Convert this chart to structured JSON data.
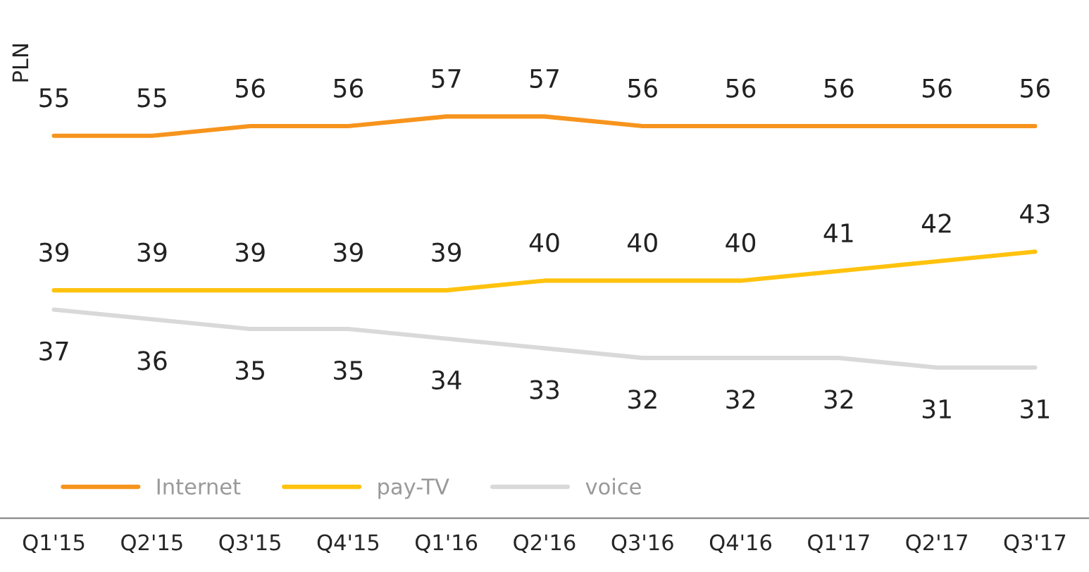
{
  "chart_data": {
    "type": "line",
    "ylabel": "PLN",
    "categories": [
      "Q1'15",
      "Q2'15",
      "Q3'15",
      "Q4'15",
      "Q1'16",
      "Q2'16",
      "Q3'16",
      "Q4'16",
      "Q1'17",
      "Q2'17",
      "Q3'17"
    ],
    "series": [
      {
        "name": "Internet",
        "color": "#f7941d",
        "values": [
          55,
          55,
          56,
          56,
          57,
          57,
          56,
          56,
          56,
          56,
          56
        ]
      },
      {
        "name": "pay-TV",
        "color": "#ffc20e",
        "values": [
          39,
          39,
          39,
          39,
          39,
          40,
          40,
          40,
          41,
          42,
          43
        ]
      },
      {
        "name": "voice",
        "color": "#d9d9d9",
        "values": [
          37,
          36,
          35,
          35,
          34,
          33,
          32,
          32,
          32,
          31,
          31
        ]
      }
    ],
    "tick_labels": "x",
    "data_labels": true,
    "legend": "bottom left",
    "grid": false,
    "marker": "none",
    "line_style": "solid"
  }
}
